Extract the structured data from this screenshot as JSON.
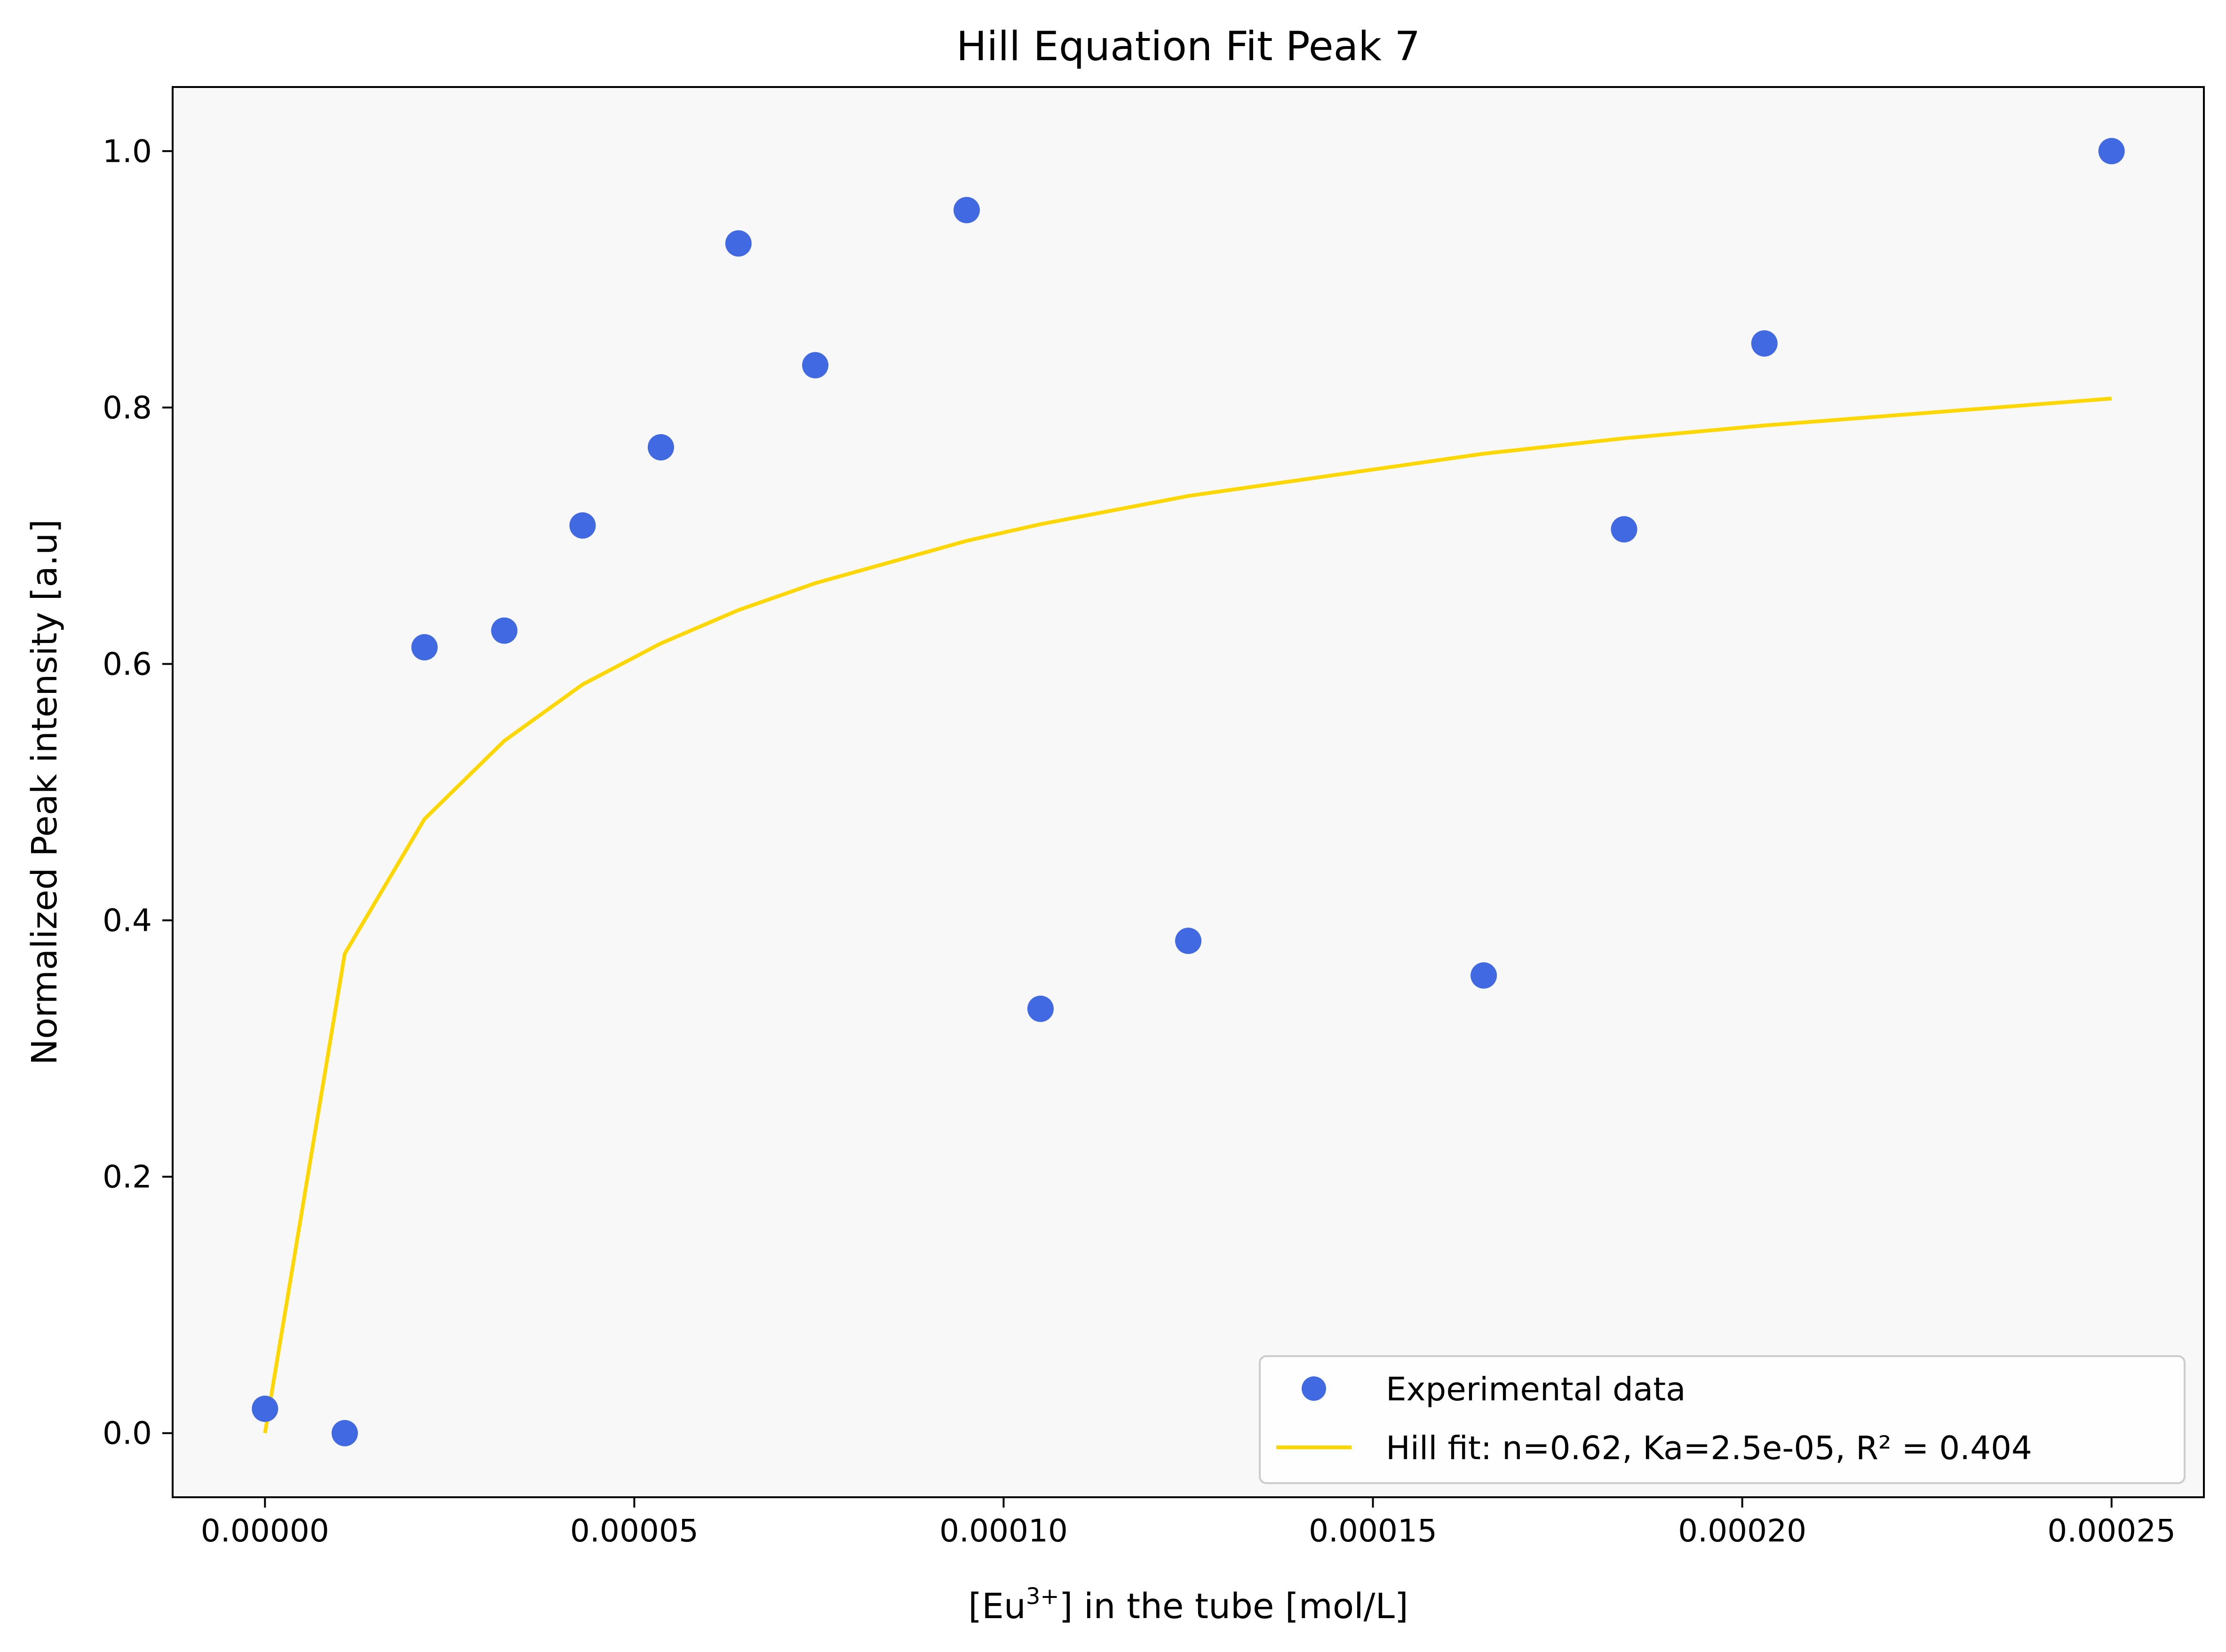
{
  "chart_data": {
    "type": "scatter",
    "title": "Hill Equation Fit Peak 7",
    "xlabel": {
      "pre": "[Eu",
      "sup": "3+",
      "post": "] in the tube [mol/L]"
    },
    "ylabel": "Normalized Peak intensity [a.u]",
    "xlim": [
      -1.25e-05,
      0.0002625
    ],
    "ylim": [
      -0.05,
      1.05
    ],
    "xticks": [
      0,
      5e-05,
      0.0001,
      0.00015,
      0.0002,
      0.00025
    ],
    "xtick_labels": [
      "0.00000",
      "0.00005",
      "0.00010",
      "0.00015",
      "0.00020",
      "0.00025"
    ],
    "yticks": [
      0.0,
      0.2,
      0.4,
      0.6,
      0.8,
      1.0
    ],
    "ytick_labels": [
      "0.0",
      "0.2",
      "0.4",
      "0.6",
      "0.8",
      "1.0"
    ],
    "grid": false,
    "legend_position": "lower-right",
    "series": [
      {
        "name": "Experimental data",
        "kind": "scatter",
        "color": "#4169e1",
        "x": [
          0,
          1.08e-05,
          2.16e-05,
          3.24e-05,
          4.3e-05,
          5.36e-05,
          6.41e-05,
          7.45e-05,
          9.5e-05,
          0.000105,
          0.000125,
          0.000165,
          0.000184,
          0.000203,
          0.00025
        ],
        "y": [
          0.019,
          0.0,
          0.613,
          0.626,
          0.708,
          0.769,
          0.928,
          0.833,
          0.954,
          0.331,
          0.384,
          0.357,
          0.705,
          0.85,
          1.0
        ]
      },
      {
        "name": "Hill fit: n=0.62, Ka=2.5e-05, R² = 0.404",
        "kind": "line",
        "color": "#ffd700",
        "x": [
          0,
          1.08e-05,
          2.16e-05,
          3.24e-05,
          4.3e-05,
          5.36e-05,
          6.41e-05,
          7.45e-05,
          9.5e-05,
          0.000105,
          0.000125,
          0.000165,
          0.000184,
          0.000203,
          0.00025
        ],
        "y": [
          0.0,
          0.374,
          0.479,
          0.54,
          0.584,
          0.616,
          0.642,
          0.663,
          0.696,
          0.709,
          0.731,
          0.764,
          0.776,
          0.786,
          0.807
        ]
      }
    ]
  },
  "colors": {
    "plot_background": "#f8f8f8",
    "axes": "#000000"
  }
}
